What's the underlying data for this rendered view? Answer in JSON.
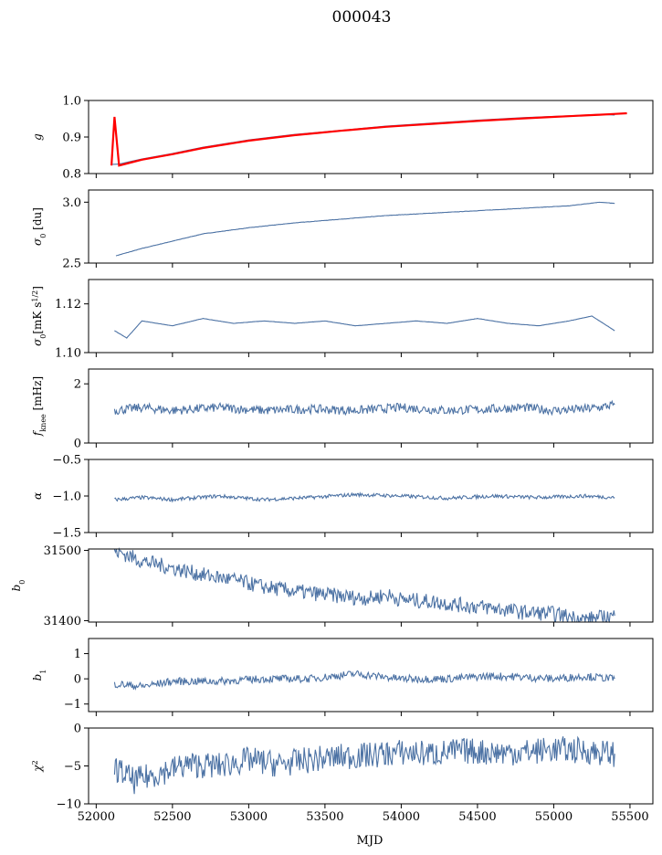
{
  "figure": {
    "title": "000043",
    "xlabel": "MJD"
  },
  "colors": {
    "line": "#4c72a4",
    "red": "#ff0000",
    "axis": "#000000"
  },
  "chart_data": [
    {
      "type": "line",
      "ylabel": "g",
      "xlim": [
        51950,
        55650
      ],
      "ylim": [
        0.8,
        1.0
      ],
      "yticks": [
        1.0,
        0.9,
        0.8
      ],
      "ytick_labels": [
        "1.0",
        "0.9",
        "0.8"
      ],
      "series": [
        {
          "color": "#4c72a4",
          "x": [
            52100,
            52150,
            52300,
            52500,
            52700,
            53000,
            53300,
            53600,
            53900,
            54200,
            54500,
            54800,
            55100,
            55300,
            55400
          ],
          "y": [
            0.825,
            0.826,
            0.84,
            0.855,
            0.872,
            0.892,
            0.907,
            0.918,
            0.93,
            0.938,
            0.946,
            0.953,
            0.958,
            0.962,
            0.96
          ]
        },
        {
          "color": "#ff0000",
          "x": [
            52100,
            52120,
            52150,
            52300,
            52500,
            52700,
            53000,
            53300,
            53600,
            53900,
            54200,
            54500,
            54800,
            55100,
            55300,
            55480
          ],
          "y": [
            0.822,
            0.955,
            0.822,
            0.838,
            0.853,
            0.87,
            0.89,
            0.905,
            0.917,
            0.928,
            0.936,
            0.944,
            0.951,
            0.957,
            0.961,
            0.965
          ]
        }
      ]
    },
    {
      "type": "line",
      "ylabel": "σ0 [du]",
      "xlim": [
        51950,
        55650
      ],
      "ylim": [
        2.5,
        3.1
      ],
      "yticks": [
        3.0,
        2.5
      ],
      "ytick_labels": [
        "3.0",
        "2.5"
      ],
      "series": [
        {
          "color": "#4c72a4",
          "x": [
            52130,
            52300,
            52500,
            52700,
            53000,
            53300,
            53600,
            53900,
            54200,
            54500,
            54800,
            55100,
            55300,
            55400
          ],
          "y": [
            2.56,
            2.62,
            2.68,
            2.74,
            2.79,
            2.83,
            2.86,
            2.89,
            2.91,
            2.93,
            2.95,
            2.97,
            3.0,
            2.99
          ]
        }
      ]
    },
    {
      "type": "line",
      "ylabel": "σ0[mK s^1/2]",
      "xlim": [
        51950,
        55650
      ],
      "ylim": [
        1.1,
        1.13
      ],
      "yticks": [
        1.12,
        1.1
      ],
      "ytick_labels": [
        "1.12",
        "1.10"
      ],
      "series": [
        {
          "color": "#4c72a4",
          "x": [
            52120,
            52200,
            52300,
            52500,
            52700,
            52900,
            53100,
            53300,
            53500,
            53700,
            53900,
            54100,
            54300,
            54500,
            54700,
            54900,
            55100,
            55250,
            55400
          ],
          "y": [
            1.109,
            1.106,
            1.113,
            1.111,
            1.114,
            1.112,
            1.113,
            1.112,
            1.113,
            1.111,
            1.112,
            1.113,
            1.112,
            1.114,
            1.112,
            1.111,
            1.113,
            1.115,
            1.109
          ]
        }
      ]
    },
    {
      "type": "line",
      "ylabel": "fknee [mHz]",
      "xlim": [
        51950,
        55650
      ],
      "ylim": [
        0,
        2.5
      ],
      "yticks": [
        2,
        0
      ],
      "ytick_labels": [
        "2",
        "0"
      ],
      "series": [
        {
          "color": "#4c72a4",
          "x": [
            52120,
            52300,
            52500,
            52800,
            53100,
            53400,
            53700,
            54000,
            54300,
            54600,
            54800,
            55000,
            55200,
            55300,
            55400
          ],
          "y": [
            1.1,
            1.2,
            1.1,
            1.2,
            1.1,
            1.15,
            1.1,
            1.2,
            1.1,
            1.15,
            1.2,
            1.1,
            1.15,
            1.2,
            1.3
          ]
        }
      ]
    },
    {
      "type": "line",
      "ylabel": "α",
      "xlim": [
        51950,
        55650
      ],
      "ylim": [
        -1.5,
        -0.5
      ],
      "yticks": [
        -0.5,
        -1.0,
        -1.5
      ],
      "ytick_labels": [
        "−0.5",
        "−1.0",
        "−1.5"
      ],
      "series": [
        {
          "color": "#4c72a4",
          "x": [
            52120,
            52300,
            52500,
            52800,
            53100,
            53400,
            53700,
            54000,
            54300,
            54600,
            54900,
            55200,
            55400
          ],
          "y": [
            -1.05,
            -1.02,
            -1.05,
            -1.0,
            -1.05,
            -1.02,
            -0.98,
            -1.0,
            -1.03,
            -1.0,
            -1.02,
            -1.0,
            -1.02
          ]
        }
      ]
    },
    {
      "type": "line",
      "ylabel": "b0",
      "xlim": [
        51950,
        55650
      ],
      "ylim": [
        31398,
        31502
      ],
      "yticks": [
        31500,
        31400
      ],
      "ytick_labels": [
        "31500",
        "31400"
      ],
      "series": [
        {
          "color": "#4c72a4",
          "x": [
            52120,
            52300,
            52500,
            52700,
            52900,
            53100,
            53300,
            53500,
            53700,
            53800,
            53900,
            54000,
            54200,
            54400,
            54600,
            54800,
            55000,
            55200,
            55300,
            55400
          ],
          "y": [
            31500,
            31485,
            31475,
            31465,
            31458,
            31448,
            31442,
            31437,
            31433,
            31432,
            31437,
            31430,
            31427,
            31422,
            31418,
            31412,
            31410,
            31402,
            31404,
            31407
          ]
        }
      ]
    },
    {
      "type": "line",
      "ylabel": "b1",
      "xlim": [
        51950,
        55650
      ],
      "ylim": [
        -1.3,
        1.6
      ],
      "yticks": [
        1,
        0,
        -1
      ],
      "ytick_labels": [
        "1",
        "0",
        "−1"
      ],
      "series": [
        {
          "color": "#4c72a4",
          "x": [
            52120,
            52300,
            52500,
            52800,
            53100,
            53400,
            53700,
            54000,
            54300,
            54550,
            54700,
            55000,
            55200,
            55400
          ],
          "y": [
            -0.2,
            -0.3,
            -0.1,
            -0.1,
            0.0,
            0.0,
            0.2,
            0.0,
            0.0,
            0.1,
            0.1,
            0.0,
            0.1,
            0.0
          ]
        }
      ]
    },
    {
      "type": "line",
      "ylabel": "χ2",
      "xlim": [
        51950,
        55650
      ],
      "ylim": [
        -10,
        0
      ],
      "yticks": [
        0,
        -5,
        -10
      ],
      "ytick_labels": [
        "0",
        "−5",
        "−10"
      ],
      "xticks": [
        52000,
        52500,
        53000,
        53500,
        54000,
        54500,
        55000,
        55500
      ],
      "xtick_labels": [
        "52000",
        "52500",
        "53000",
        "53500",
        "54000",
        "54500",
        "55000",
        "55500"
      ],
      "series": [
        {
          "color": "#4c72a4",
          "x": [
            52120,
            52250,
            52400,
            52600,
            52800,
            53000,
            53200,
            53400,
            53600,
            53800,
            54000,
            54200,
            54400,
            54600,
            54800,
            55000,
            55200,
            55400
          ],
          "y": [
            -5.2,
            -7.0,
            -6.0,
            -4.8,
            -5.0,
            -4.2,
            -4.8,
            -4.2,
            -3.8,
            -3.6,
            -3.2,
            -3.4,
            -3.0,
            -3.2,
            -3.2,
            -2.8,
            -3.0,
            -3.4
          ]
        }
      ]
    }
  ]
}
